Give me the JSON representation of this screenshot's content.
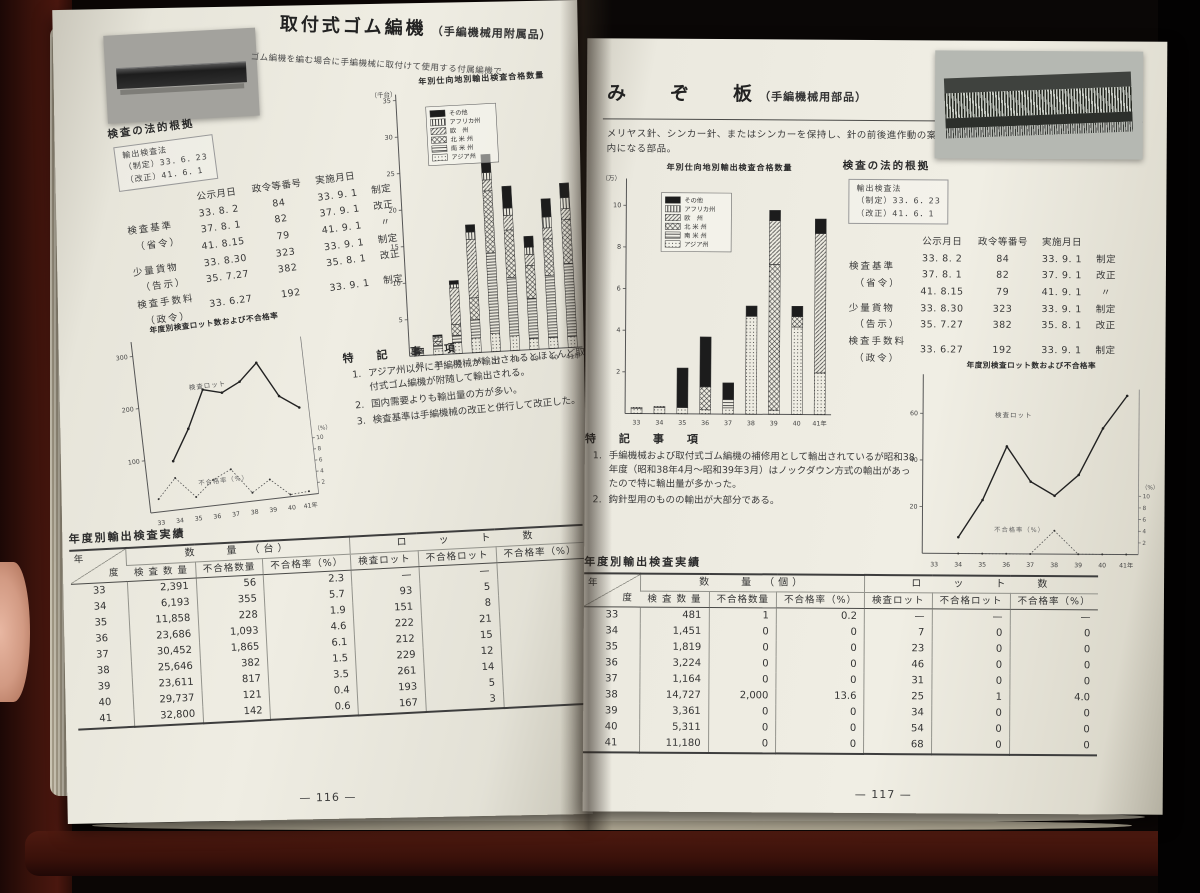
{
  "book": {
    "left_page": {
      "page_number": "— 116 —",
      "header_title": "取付式ゴム編機",
      "header_suffix": "（手編機械用附属品）",
      "header_caption": "ゴム編機を編む場合に手編機械に取付けて使用する付属編機で…",
      "legal": {
        "section_title": "検査の法的根拠",
        "law_box": [
          "輸出検査法",
          "（制定）33．6．23",
          "（改正）41．6．1"
        ],
        "col_headers": [
          "公示月日",
          "政令等番号",
          "実施月日"
        ],
        "rows": [
          {
            "label": "検査基準",
            "sublabel": "（省令）",
            "entries": [
              [
                "33. 8. 2",
                "84",
                "33. 9. 1",
                "制定"
              ],
              [
                "37. 8. 1",
                "82",
                "37. 9. 1",
                "改正"
              ],
              [
                "41. 8.15",
                "79",
                "41. 9. 1",
                "〃"
              ]
            ]
          },
          {
            "label": "少量貨物",
            "sublabel": "（告示）",
            "entries": [
              [
                "33. 8.30",
                "323",
                "33. 9. 1",
                "制定"
              ],
              [
                "35. 7.27",
                "382",
                "35. 8. 1",
                "改正"
              ]
            ]
          },
          {
            "label": "検査手数料",
            "sublabel": "（政令）",
            "entries": [
              [
                "33. 6.27",
                "192",
                "33. 9. 1",
                "制定"
              ]
            ]
          }
        ]
      },
      "notes_title": "特　記　事　項",
      "notes": [
        "アジア州以外に手編機械が輸出されるとほとんど取付式ゴム編機が附随して輸出される。",
        "国内需要よりも輸出量の方が多い。",
        "検査基準は手編機械の改正と併行して改正した。"
      ],
      "table": {
        "title": "年度別輸出検査実績",
        "corner": [
          "年",
          "度"
        ],
        "group_headers": [
          {
            "label": "数　　量　（台）",
            "span": 3
          },
          {
            "label": "ロ　　ッ　　ト　　数",
            "span": 3
          }
        ],
        "col_headers": [
          "検 査 数 量",
          "不合格数量",
          "不合格率（%）",
          "検査ロット",
          "不合格ロット",
          "不合格率（%）"
        ],
        "rows": [
          [
            "33",
            "2,391",
            "56",
            "2.3",
            "—",
            "—",
            ""
          ],
          [
            "34",
            "6,193",
            "355",
            "5.7",
            "93",
            "5",
            ""
          ],
          [
            "35",
            "11,858",
            "228",
            "1.9",
            "151",
            "8",
            ""
          ],
          [
            "36",
            "23,686",
            "1,093",
            "4.6",
            "222",
            "21",
            ""
          ],
          [
            "37",
            "30,452",
            "1,865",
            "6.1",
            "212",
            "15",
            ""
          ],
          [
            "38",
            "25,646",
            "382",
            "1.5",
            "229",
            "12",
            ""
          ],
          [
            "39",
            "23,611",
            "817",
            "3.5",
            "261",
            "14",
            ""
          ],
          [
            "40",
            "29,737",
            "121",
            "0.4",
            "193",
            "5",
            ""
          ],
          [
            "41",
            "32,800",
            "142",
            "0.6",
            "167",
            "3",
            ""
          ]
        ]
      }
    },
    "right_page": {
      "page_number": "— 117 —",
      "title": "み　　ぞ　　板",
      "title_suffix": "（手編機械用部品）",
      "description": "メリヤス針、シンカー針、またはシンカーを保持し、針の前後進作動の案内になる部品。",
      "legal": {
        "section_title": "検査の法的根拠",
        "law_box": [
          "輸出検査法",
          "（制定）33．6．23",
          "（改正）41．6．1"
        ],
        "col_headers": [
          "公示月日",
          "政令等番号",
          "実施月日"
        ],
        "rows": [
          {
            "label": "検査基準",
            "sublabel": "（省令）",
            "entries": [
              [
                "33. 8. 2",
                "84",
                "33. 9. 1",
                "制定"
              ],
              [
                "37. 8. 1",
                "82",
                "37. 9. 1",
                "改正"
              ],
              [
                "41. 8.15",
                "79",
                "41. 9. 1",
                "〃"
              ]
            ]
          },
          {
            "label": "少量貨物",
            "sublabel": "（告示）",
            "entries": [
              [
                "33. 8.30",
                "323",
                "33. 9. 1",
                "制定"
              ],
              [
                "35. 7.27",
                "382",
                "35. 8. 1",
                "改正"
              ]
            ]
          },
          {
            "label": "検査手数料",
            "sublabel": "（政令）",
            "entries": [
              [
                "33. 6.27",
                "192",
                "33. 9. 1",
                "制定"
              ]
            ]
          }
        ]
      },
      "notes_title": "特　記　事　項",
      "notes": [
        "手編機械および取付式ゴム編機の補修用として輸出されているが昭和38年度（昭和38年4月～昭和39年3月）はノックダウン方式の輸出があったので特に輸出量が多かった。",
        "鈎針型用のものの輸出が大部分である。"
      ],
      "table": {
        "title": "年度別輸出検査実績",
        "corner": [
          "年",
          "度"
        ],
        "group_headers": [
          {
            "label": "数　　量　（個）",
            "span": 3
          },
          {
            "label": "ロ　　ッ　　ト　　数",
            "span": 3
          }
        ],
        "col_headers": [
          "検 査 数 量",
          "不合格数量",
          "不合格率（%）",
          "検査ロット",
          "不合格ロット",
          "不合格率（%）"
        ],
        "rows": [
          [
            "33",
            "481",
            "1",
            "0.2",
            "—",
            "—",
            "—"
          ],
          [
            "34",
            "1,451",
            "0",
            "0",
            "7",
            "0",
            "0"
          ],
          [
            "35",
            "1,819",
            "0",
            "0",
            "23",
            "0",
            "0"
          ],
          [
            "36",
            "3,224",
            "0",
            "0",
            "46",
            "0",
            "0"
          ],
          [
            "37",
            "1,164",
            "0",
            "0",
            "31",
            "0",
            "0"
          ],
          [
            "38",
            "14,727",
            "2,000",
            "13.6",
            "25",
            "1",
            "4.0"
          ],
          [
            "39",
            "3,361",
            "0",
            "0",
            "34",
            "0",
            "0"
          ],
          [
            "40",
            "5,311",
            "0",
            "0",
            "54",
            "0",
            "0"
          ],
          [
            "41",
            "11,180",
            "0",
            "0",
            "68",
            "0",
            "0"
          ]
        ]
      }
    }
  },
  "chart_data": [
    {
      "type": "bar",
      "stacked": true,
      "title": "年別仕向地別輸出検査合格数量",
      "unit_label": "（千台）",
      "categories": [
        "33",
        "34",
        "35",
        "36",
        "37",
        "38",
        "39",
        "40",
        "41年"
      ],
      "legend": [
        "その他",
        "アフリカ州",
        "欧　州",
        "北 米 州",
        "南 米 州",
        "アジア州"
      ],
      "series": [
        {
          "name": "アジア州",
          "pattern": "dots",
          "values": [
            0.3,
            0.8,
            1.5,
            2.0,
            2.5,
            2.0,
            1.5,
            1.5,
            1.5
          ]
        },
        {
          "name": "南米州",
          "pattern": "hlines",
          "values": [
            0.2,
            0.5,
            1.0,
            2.5,
            11.0,
            8.0,
            5.5,
            8.5,
            10.0
          ]
        },
        {
          "name": "北米州",
          "pattern": "cross",
          "values": [
            0.2,
            0.5,
            1.5,
            3.0,
            8.5,
            6.5,
            4.5,
            5.0,
            6.0
          ]
        },
        {
          "name": "欧州",
          "pattern": "diag",
          "values": [
            0.2,
            0.5,
            5.0,
            8.0,
            1.5,
            2.0,
            1.5,
            1.5,
            1.5
          ]
        },
        {
          "name": "アフリカ州",
          "pattern": "vlines",
          "values": [
            0.05,
            0.2,
            0.5,
            1.0,
            1.0,
            1.0,
            1.0,
            1.5,
            1.5
          ]
        },
        {
          "name": "その他",
          "pattern": "solid",
          "values": [
            0.05,
            0.2,
            0.5,
            1.0,
            2.5,
            3.0,
            1.5,
            2.5,
            2.0
          ]
        }
      ],
      "ylim": [
        0,
        35
      ],
      "yticks": [
        5,
        10,
        15,
        20,
        25,
        30,
        35
      ]
    },
    {
      "type": "line",
      "title": "年度別検査ロット数および不合格率",
      "categories": [
        "33",
        "34",
        "35",
        "36",
        "37",
        "38",
        "39",
        "40",
        "41年"
      ],
      "left_axis": {
        "ticks": [
          100,
          200,
          300
        ],
        "max": 320
      },
      "right_axis": {
        "label": "（%）",
        "ticks": [
          10,
          8,
          6,
          4,
          2
        ]
      },
      "series": [
        {
          "name": "検査ロット",
          "axis": "left",
          "style": "solid-then-dashed",
          "dash_from": 6,
          "values": [
            null,
            93,
            151,
            222,
            212,
            229,
            261,
            193,
            167
          ]
        },
        {
          "name": "不合格率（%）",
          "axis": "right",
          "style": "dotted",
          "values": [
            2.3,
            5.7,
            1.9,
            4.6,
            6.1,
            1.5,
            3.5,
            0.4,
            0.6
          ]
        }
      ]
    },
    {
      "type": "bar",
      "stacked": true,
      "title": "年別仕向地別輸出検査合格数量",
      "unit_label": "（万）",
      "categories": [
        "33",
        "34",
        "35",
        "36",
        "37",
        "38",
        "39",
        "40",
        "41年"
      ],
      "legend": [
        "その他",
        "アフリカ州",
        "欧　州",
        "北 米 州",
        "南 米 州",
        "アジア州"
      ],
      "series": [
        {
          "name": "アジア州",
          "pattern": "dots",
          "values": [
            0.25,
            0.3,
            0.3,
            0.2,
            0.3,
            4.7,
            0.2,
            4.2,
            2.0
          ]
        },
        {
          "name": "南米州",
          "pattern": "hlines",
          "values": [
            0,
            0,
            0,
            0,
            0.4,
            0,
            0,
            0,
            0
          ]
        },
        {
          "name": "北米州",
          "pattern": "cross",
          "values": [
            0,
            0,
            0,
            1.1,
            0,
            0,
            7.0,
            0.5,
            0
          ]
        },
        {
          "name": "欧州",
          "pattern": "diag",
          "values": [
            0,
            0,
            0,
            0,
            0,
            0,
            2.1,
            0,
            6.7
          ]
        },
        {
          "name": "アフリカ州",
          "pattern": "vlines",
          "values": [
            0.05,
            0.05,
            0,
            0,
            0,
            0,
            0,
            0,
            0
          ]
        },
        {
          "name": "その他",
          "pattern": "solid",
          "values": [
            0,
            0,
            1.9,
            2.4,
            0.8,
            0.5,
            0.5,
            0.5,
            0.7
          ]
        }
      ],
      "ylim": [
        0,
        11
      ],
      "yticks": [
        2,
        4,
        6,
        8,
        10
      ]
    },
    {
      "type": "line",
      "title": "年度別検査ロット数および不合格率",
      "categories": [
        "33",
        "34",
        "35",
        "36",
        "37",
        "38",
        "39",
        "40",
        "41年"
      ],
      "left_axis": {
        "ticks": [
          20,
          40,
          60
        ],
        "max": 75
      },
      "right_axis": {
        "label": "（%）",
        "ticks": [
          10,
          8,
          6,
          4,
          2
        ]
      },
      "series": [
        {
          "name": "検査ロット",
          "axis": "left",
          "style": "solid-then-dashed",
          "dash_from": 5,
          "values": [
            null,
            7,
            23,
            46,
            31,
            25,
            34,
            54,
            68
          ]
        },
        {
          "name": "不合格率（%）",
          "axis": "right",
          "style": "dotted",
          "values": [
            null,
            0,
            0,
            0,
            0,
            4.0,
            0,
            0,
            0
          ]
        }
      ]
    }
  ]
}
